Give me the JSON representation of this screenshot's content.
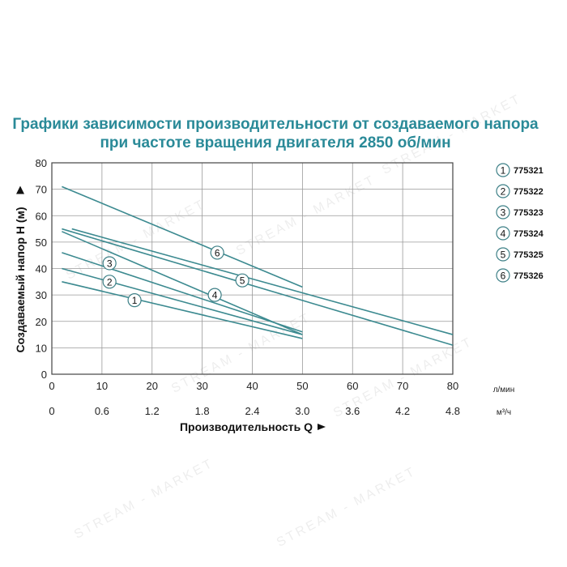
{
  "title_line1": "Графики зависимости производительности от создаваемого напора",
  "title_line2": "при частоте вращения двигателя 2850 об/мин",
  "chart_data": {
    "type": "line",
    "ylabel": "Создаваемый напор Н (м)",
    "xlabel": "Производительность Q",
    "x_unit": "л/мин",
    "x2_unit": "м³/ч",
    "xlim": [
      0,
      80
    ],
    "ylim": [
      0,
      80
    ],
    "x_ticks": [
      "0",
      "10",
      "20",
      "30",
      "40",
      "50",
      "60",
      "70",
      "80"
    ],
    "x2_ticks": [
      "0",
      "0.6",
      "1.2",
      "1.8",
      "2.4",
      "3.0",
      "3.6",
      "4.2",
      "4.8"
    ],
    "y_ticks": [
      "0",
      "10",
      "20",
      "30",
      "40",
      "50",
      "60",
      "70",
      "80"
    ],
    "grid": true,
    "legend_position": "right",
    "series": [
      {
        "name": "775321",
        "badge": "1",
        "x": [
          2,
          50
        ],
        "y": [
          35,
          13.5
        ],
        "label_at": [
          16.5,
          28
        ]
      },
      {
        "name": "775322",
        "badge": "2",
        "x": [
          2,
          50
        ],
        "y": [
          40,
          15
        ],
        "label_at": [
          11.5,
          35
        ]
      },
      {
        "name": "775323",
        "badge": "3",
        "x": [
          2,
          50
        ],
        "y": [
          46,
          16
        ],
        "label_at": [
          11.5,
          42
        ]
      },
      {
        "name": "775324",
        "badge": "4",
        "x": [
          2,
          50
        ],
        "y": [
          54,
          15
        ],
        "label_at": [
          32.5,
          30
        ]
      },
      {
        "name": "775325",
        "badge": "5",
        "x": [
          2,
          80
        ],
        "y": [
          55,
          11
        ],
        "label_at": [
          38,
          35.5
        ]
      },
      {
        "name": "775326",
        "badge": "6",
        "x": [
          2,
          50
        ],
        "y": [
          71,
          33
        ],
        "label_at": [
          33,
          46
        ]
      },
      {
        "name": "",
        "badge": "",
        "x": [
          4,
          80
        ],
        "y": [
          55,
          15
        ],
        "label_at": null
      }
    ]
  },
  "colors": {
    "curve": "#3c8a90",
    "grid": "#999999",
    "title": "#2a8a98"
  },
  "watermark_text": "STREAM - MARKET"
}
